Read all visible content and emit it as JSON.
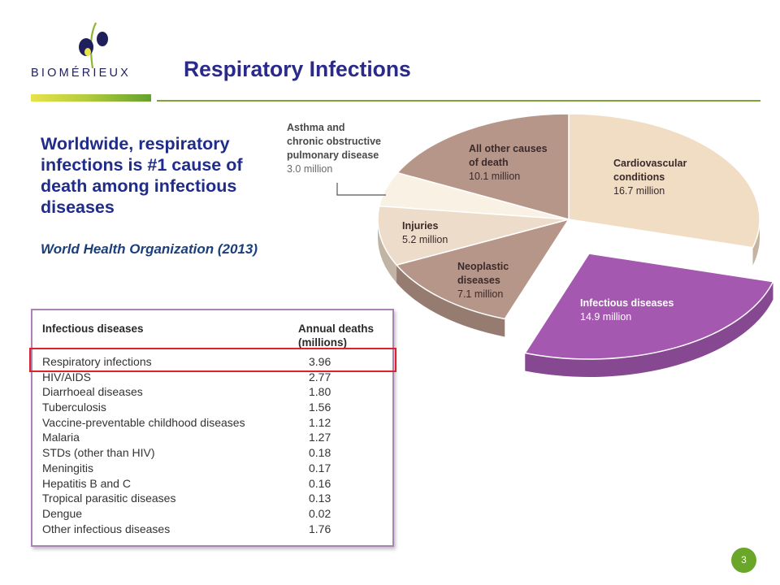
{
  "logo": {
    "text": "BIOMÉRIEUX",
    "icon": "biomerieux-logo-icon"
  },
  "slide": {
    "title": "Respiratory Infections",
    "headline": "Worldwide, respiratory infections is #1 cause of death among infectious diseases",
    "source": "World Health Organization (2013)",
    "page_number": "3"
  },
  "colors": {
    "title": "#2a2a8a",
    "accent_green": "#6aa628",
    "highlight_red": "#e0202a",
    "table_border": "#a883b4"
  },
  "chart_data": {
    "type": "pie",
    "slices": [
      {
        "name": "Cardiovascular conditions",
        "value": 16.7,
        "label": "16.7 million",
        "color": "#f1dcc4"
      },
      {
        "name": "Infectious diseases",
        "value": 14.9,
        "label": "14.9 million",
        "color": "#a458b0"
      },
      {
        "name": "Neoplastic diseases",
        "value": 7.1,
        "label": "7.1 million",
        "color": "#b7968a"
      },
      {
        "name": "Injuries",
        "value": 5.2,
        "label": "5.2 million",
        "color": "#eddcc9"
      },
      {
        "name": "Asthma and chronic obstructive pulmonary disease",
        "value": 3.0,
        "label": "3.0 million",
        "color": "#f8f1e4"
      },
      {
        "name": "All other causes of death",
        "value": 10.1,
        "label": "10.1 million",
        "color": "#b7968a"
      }
    ]
  },
  "pie_labels": {
    "cardio_name_1": "Cardiovascular",
    "cardio_name_2": "conditions",
    "cardio_value": "16.7 million",
    "infectious_name": "Infectious diseases",
    "infectious_value": "14.9 million",
    "neoplastic_name_1": "Neoplastic",
    "neoplastic_name_2": "diseases",
    "neoplastic_value": "7.1 million",
    "injuries_name": "Injuries",
    "injuries_value": "5.2 million",
    "asthma_name_1": "Asthma and",
    "asthma_name_2": "chronic obstructive",
    "asthma_name_3": "pulmonary disease",
    "asthma_value": "3.0 million",
    "other_name_1": "All other causes",
    "other_name_2": "of death",
    "other_value": "10.1 million"
  },
  "table": {
    "col_name": "Infectious diseases",
    "col_value_1": "Annual deaths",
    "col_value_2": "(millions)",
    "rows": [
      {
        "name": "Respiratory infections",
        "value": "3.96"
      },
      {
        "name": "HIV/AIDS",
        "value": "2.77"
      },
      {
        "name": "Diarrhoeal diseases",
        "value": "1.80"
      },
      {
        "name": "Tuberculosis",
        "value": "1.56"
      },
      {
        "name": "Vaccine-preventable childhood diseases",
        "value": "1.12"
      },
      {
        "name": "Malaria",
        "value": "1.27"
      },
      {
        "name": "STDs (other than HIV)",
        "value": "0.18"
      },
      {
        "name": "Meningitis",
        "value": "0.17"
      },
      {
        "name": "Hepatitis B and C",
        "value": "0.16"
      },
      {
        "name": "Tropical parasitic diseases",
        "value": "0.13"
      },
      {
        "name": "Dengue",
        "value": "0.02"
      },
      {
        "name": "Other infectious diseases",
        "value": "1.76"
      }
    ]
  }
}
